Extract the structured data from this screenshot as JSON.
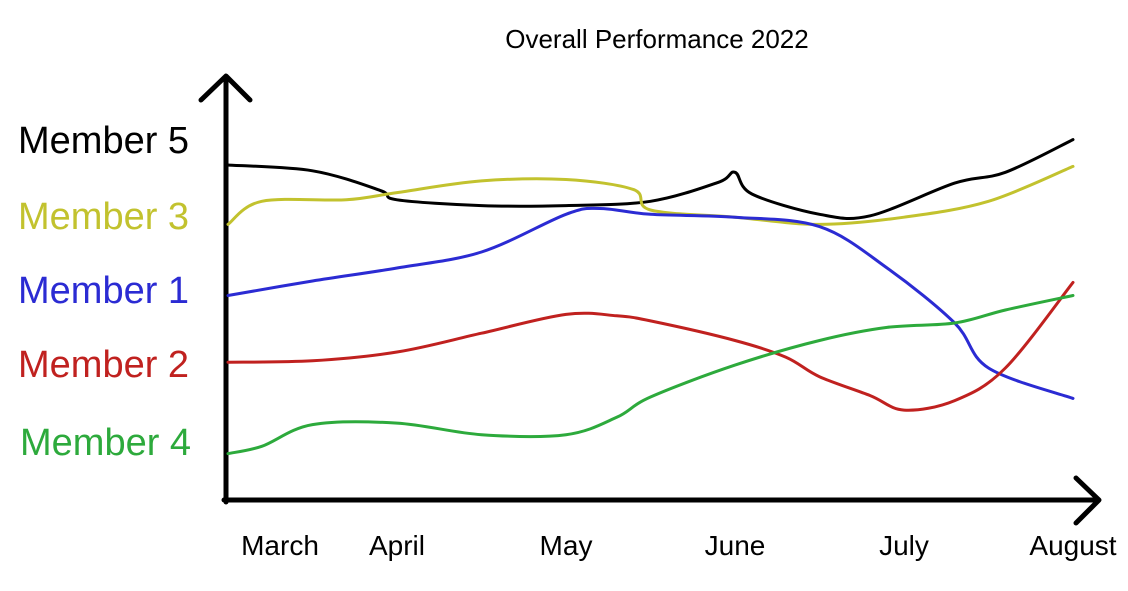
{
  "chart_data": {
    "type": "line",
    "title": "Overall Performance 2022",
    "xlabel": "",
    "ylabel": "",
    "categories": [
      "March",
      "April",
      "May",
      "June",
      "July",
      "August"
    ],
    "y_levels": [
      "Member 5",
      "Member 3",
      "Member 1",
      "Member 2",
      "Member 4"
    ],
    "grid": false,
    "legend": "none",
    "series": [
      {
        "name": "Member 5",
        "color": "#000000",
        "x": [
          0,
          0.5,
          0.9,
          1.0,
          1.5,
          2.0,
          2.5,
          2.9,
          3.0,
          3.1,
          3.5,
          3.8,
          4.3,
          4.6,
          5.0
        ],
        "y": [
          4.8,
          4.72,
          4.45,
          4.32,
          4.24,
          4.24,
          4.3,
          4.56,
          4.7,
          4.4,
          4.12,
          4.1,
          4.55,
          4.7,
          5.15
        ]
      },
      {
        "name": "Member 3",
        "color": "#c2c22e",
        "x": [
          0,
          0.2,
          0.7,
          1.0,
          1.5,
          2.0,
          2.4,
          2.5,
          3.0,
          3.5,
          4.0,
          4.5,
          5.0
        ],
        "y": [
          3.98,
          4.3,
          4.32,
          4.42,
          4.58,
          4.6,
          4.46,
          4.18,
          4.08,
          3.98,
          4.08,
          4.3,
          4.78
        ]
      },
      {
        "name": "Member 1",
        "color": "#2b2bd3",
        "x": [
          0,
          0.5,
          1.0,
          1.5,
          2.0,
          2.2,
          2.5,
          3.0,
          3.5,
          3.9,
          4.3,
          4.5,
          5.0
        ],
        "y": [
          3.0,
          3.2,
          3.38,
          3.6,
          4.12,
          4.2,
          4.12,
          4.08,
          3.95,
          3.38,
          2.62,
          2.0,
          1.58
        ]
      },
      {
        "name": "Member 2",
        "color": "#c0211f",
        "x": [
          0,
          0.5,
          1.0,
          1.5,
          2.0,
          2.3,
          2.5,
          3.0,
          3.3,
          3.5,
          3.8,
          4.0,
          4.3,
          4.6,
          5.0
        ],
        "y": [
          2.08,
          2.1,
          2.22,
          2.48,
          2.74,
          2.72,
          2.65,
          2.38,
          2.15,
          1.88,
          1.62,
          1.42,
          1.55,
          2.0,
          3.18
        ]
      },
      {
        "name": "Member 4",
        "color": "#2daa3c",
        "x": [
          0,
          0.2,
          0.5,
          1.0,
          1.5,
          2.0,
          2.3,
          2.5,
          3.0,
          3.5,
          3.9,
          4.3,
          4.6,
          5.0
        ],
        "y": [
          0.82,
          0.92,
          1.22,
          1.24,
          1.08,
          1.08,
          1.32,
          1.6,
          2.04,
          2.38,
          2.56,
          2.62,
          2.8,
          3.0
        ]
      }
    ]
  }
}
